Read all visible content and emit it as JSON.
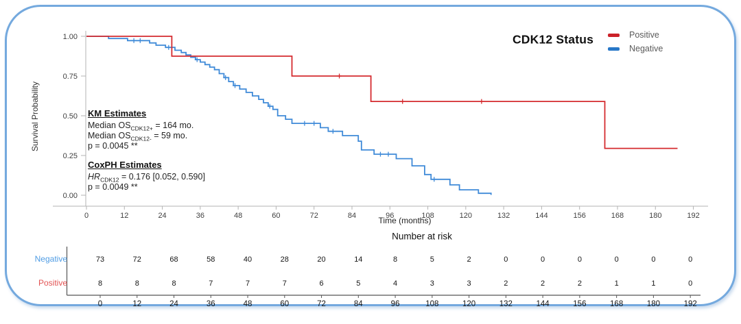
{
  "figure": {
    "title": "CDK12 Status",
    "legend": {
      "items": [
        {
          "label": "Positive",
          "color": "#cb2129"
        },
        {
          "label": "Negative",
          "color": "#2878c8"
        }
      ]
    },
    "annotations": {
      "km": {
        "heading": "KM Estimates",
        "line1": {
          "prefix": "Median OS",
          "sub": "CDK12+",
          "suffix": " = 164 mo."
        },
        "line2": {
          "prefix": "Median OS",
          "sub": "CDK12-",
          "suffix": " = 59 mo."
        },
        "pvalue": "p = 0.0045 **"
      },
      "coxph": {
        "heading": "CoxPH Estimates",
        "line1": {
          "prefix": "HR",
          "sub": "CDK12",
          "suffix": " = 0.176 [0.052, 0.590]"
        },
        "pvalue": "p = 0.0049 **"
      }
    }
  },
  "chart_data": {
    "type": "line",
    "subtype": "kaplan-meier-step",
    "title": "CDK12 Status",
    "xlabel": "Time (months)",
    "ylabel": "Survival Probability",
    "xlim": [
      0,
      192
    ],
    "ylim": [
      0,
      1
    ],
    "grid": false,
    "legend_position": "top-right",
    "xticks": [
      0,
      12,
      24,
      36,
      48,
      60,
      72,
      84,
      96,
      108,
      120,
      132,
      144,
      156,
      168,
      180,
      192
    ],
    "yticks": [
      0,
      0.25,
      0.5,
      0.75,
      1
    ],
    "ytick_labels": [
      "0.00",
      "0.25",
      "0.50",
      "0.75",
      "1.00"
    ],
    "series": [
      {
        "name": "Negative",
        "color": "#3f8ad8",
        "median_os_months": 59,
        "steps": [
          [
            0,
            1.0
          ],
          [
            7,
            1.0
          ],
          [
            7,
            0.986
          ],
          [
            13,
            0.986
          ],
          [
            13,
            0.973
          ],
          [
            20,
            0.973
          ],
          [
            20,
            0.958
          ],
          [
            22,
            0.958
          ],
          [
            22,
            0.944
          ],
          [
            25,
            0.944
          ],
          [
            25,
            0.93
          ],
          [
            28,
            0.93
          ],
          [
            28,
            0.912
          ],
          [
            30,
            0.912
          ],
          [
            30,
            0.898
          ],
          [
            31.5,
            0.898
          ],
          [
            31.5,
            0.883
          ],
          [
            33,
            0.883
          ],
          [
            33,
            0.868
          ],
          [
            34.5,
            0.868
          ],
          [
            34.5,
            0.853
          ],
          [
            36,
            0.853
          ],
          [
            36,
            0.838
          ],
          [
            37.5,
            0.838
          ],
          [
            37.5,
            0.822
          ],
          [
            39,
            0.822
          ],
          [
            39,
            0.806
          ],
          [
            40.5,
            0.806
          ],
          [
            40.5,
            0.79
          ],
          [
            42,
            0.79
          ],
          [
            42,
            0.765
          ],
          [
            43.5,
            0.765
          ],
          [
            43.5,
            0.74
          ],
          [
            45,
            0.74
          ],
          [
            45,
            0.715
          ],
          [
            46.5,
            0.715
          ],
          [
            46.5,
            0.69
          ],
          [
            48.5,
            0.69
          ],
          [
            48.5,
            0.668
          ],
          [
            50.5,
            0.668
          ],
          [
            50.5,
            0.647
          ],
          [
            52.5,
            0.647
          ],
          [
            52.5,
            0.625
          ],
          [
            54.5,
            0.625
          ],
          [
            54.5,
            0.603
          ],
          [
            56,
            0.603
          ],
          [
            56,
            0.582
          ],
          [
            57.5,
            0.582
          ],
          [
            57.5,
            0.56
          ],
          [
            59,
            0.56
          ],
          [
            59,
            0.54
          ],
          [
            60.5,
            0.54
          ],
          [
            60.5,
            0.5
          ],
          [
            63,
            0.5
          ],
          [
            63,
            0.478
          ],
          [
            65,
            0.478
          ],
          [
            65,
            0.452
          ],
          [
            74,
            0.452
          ],
          [
            74,
            0.425
          ],
          [
            76.5,
            0.425
          ],
          [
            76.5,
            0.402
          ],
          [
            81,
            0.402
          ],
          [
            81,
            0.375
          ],
          [
            86,
            0.375
          ],
          [
            86,
            0.34
          ],
          [
            87,
            0.34
          ],
          [
            87,
            0.285
          ],
          [
            91,
            0.285
          ],
          [
            91,
            0.258
          ],
          [
            98,
            0.258
          ],
          [
            98,
            0.23
          ],
          [
            103,
            0.23
          ],
          [
            103,
            0.185
          ],
          [
            107,
            0.185
          ],
          [
            107,
            0.13
          ],
          [
            109,
            0.13
          ],
          [
            109,
            0.1
          ],
          [
            115,
            0.1
          ],
          [
            115,
            0.065
          ],
          [
            118,
            0.065
          ],
          [
            118,
            0.034
          ],
          [
            124,
            0.034
          ],
          [
            124,
            0.012
          ],
          [
            128,
            0.012
          ],
          [
            128,
            0.002
          ]
        ],
        "censor_marks": [
          [
            15,
            0.973
          ],
          [
            17,
            0.973
          ],
          [
            26,
            0.93
          ],
          [
            35,
            0.853
          ],
          [
            44,
            0.74
          ],
          [
            47,
            0.69
          ],
          [
            58,
            0.56
          ],
          [
            69,
            0.452
          ],
          [
            72,
            0.452
          ],
          [
            78,
            0.402
          ],
          [
            93,
            0.258
          ],
          [
            95.5,
            0.258
          ],
          [
            110,
            0.1
          ]
        ]
      },
      {
        "name": "Positive",
        "color": "#d42a2e",
        "median_os_months": 164,
        "steps": [
          [
            0,
            1.0
          ],
          [
            27,
            1.0
          ],
          [
            27,
            0.875
          ],
          [
            65,
            0.875
          ],
          [
            65,
            0.75
          ],
          [
            90,
            0.75
          ],
          [
            90,
            0.59
          ],
          [
            164,
            0.59
          ],
          [
            164,
            0.295
          ],
          [
            187,
            0.295
          ]
        ],
        "censor_marks": [
          [
            80,
            0.75
          ],
          [
            100,
            0.59
          ],
          [
            125,
            0.59
          ]
        ]
      }
    ]
  },
  "risk_table": {
    "title": "Number at risk",
    "time_ticks": [
      0,
      12,
      24,
      36,
      48,
      60,
      72,
      84,
      96,
      108,
      120,
      132,
      144,
      156,
      168,
      180,
      192
    ],
    "rows": [
      {
        "label": "Negative",
        "label_color": "#4f9ce4",
        "values": [
          73,
          72,
          68,
          58,
          40,
          28,
          20,
          14,
          8,
          5,
          2,
          0,
          0,
          0,
          0,
          0,
          0
        ]
      },
      {
        "label": "Positive",
        "label_color": "#e25353",
        "values": [
          8,
          8,
          8,
          7,
          7,
          7,
          6,
          5,
          4,
          3,
          3,
          2,
          2,
          2,
          1,
          1,
          0
        ]
      }
    ]
  }
}
